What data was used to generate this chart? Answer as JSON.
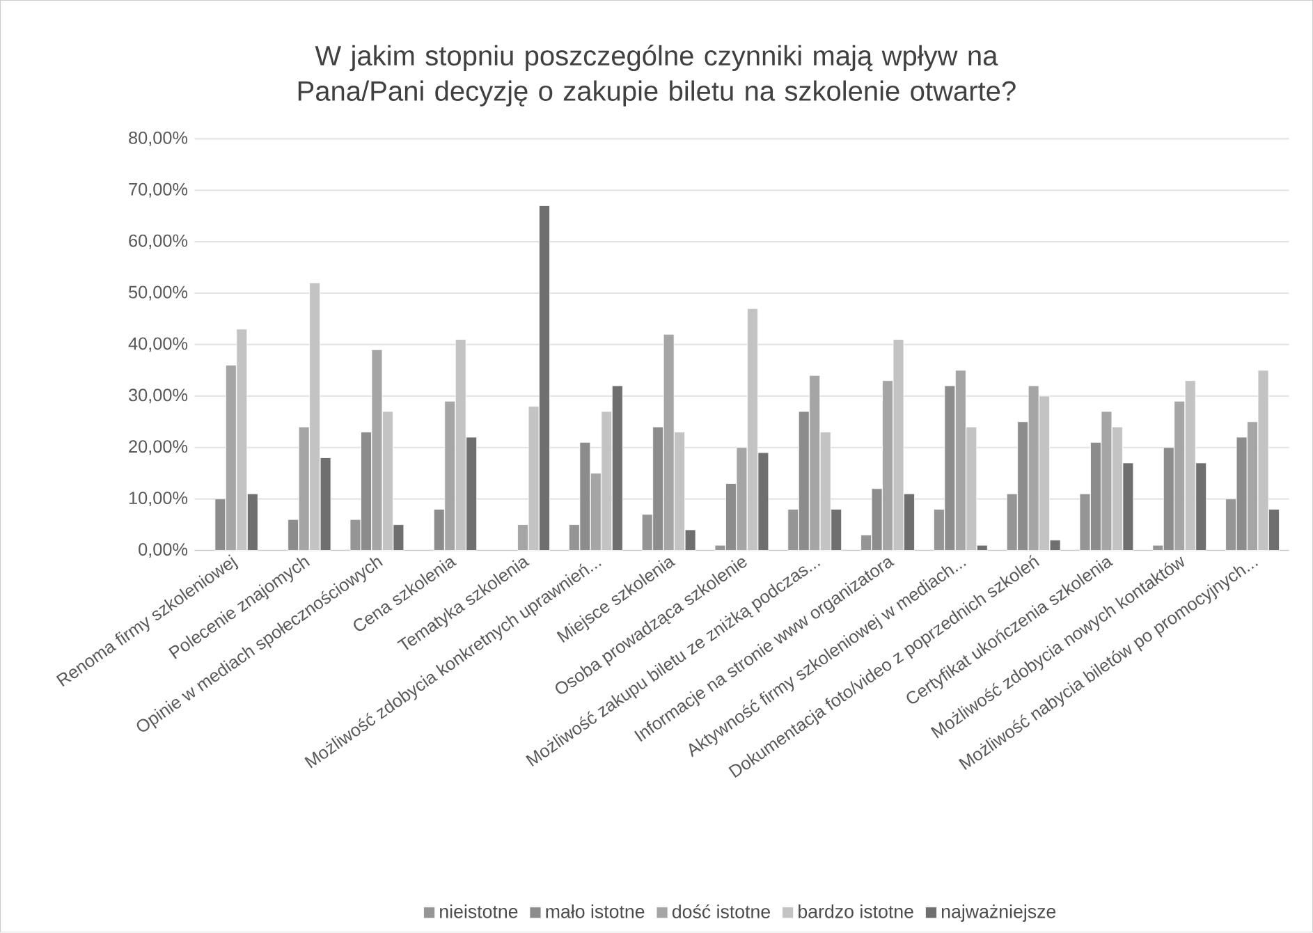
{
  "chart_data": {
    "type": "bar",
    "title": "W jakim stopniu poszczególne czynniki mają wpływ na Pana/Pani decyzję o zakupie biletu na szkolenie otwarte?",
    "categories": [
      "Renoma firmy szkoleniowej",
      "Polecenie znajomych",
      "Opinie w mediach społecznościowych",
      "Cena szkolenia",
      "Tematyka szkolenia",
      "Możliwość zdobycia konkretnych uprawnień...",
      "Miejsce szkolenia",
      "Osoba prowadząca szkolenie",
      "Możliwość zakupu biletu ze zniżką podczas...",
      "Informacje na stronie www organizatora",
      "Aktywność firmy szkoleniowej w mediach...",
      "Dokumentacja foto/video z poprzednich szkoleń",
      "Certyfikat ukończenia szkolenia",
      "Możliwość zdobycia nowych kontaktów",
      "Możliwość nabycia biletów po promocyjnych..."
    ],
    "series": [
      {
        "name": "nieistotne",
        "color": "#959595",
        "values": [
          null,
          null,
          6,
          null,
          null,
          5,
          7,
          1,
          8,
          3,
          8,
          11,
          11,
          1,
          10
        ]
      },
      {
        "name": "mało istotne",
        "color": "#8c8c8c",
        "values": [
          10,
          6,
          23,
          8,
          null,
          21,
          24,
          13,
          27,
          12,
          32,
          25,
          21,
          20,
          22
        ]
      },
      {
        "name": "dość istotne",
        "color": "#a5a5a5",
        "values": [
          36,
          24,
          39,
          29,
          5,
          15,
          42,
          20,
          34,
          33,
          35,
          32,
          27,
          29,
          25
        ]
      },
      {
        "name": "bardzo istotne",
        "color": "#c3c3c3",
        "values": [
          43,
          52,
          27,
          41,
          28,
          27,
          23,
          47,
          23,
          41,
          24,
          30,
          24,
          33,
          35
        ]
      },
      {
        "name": "najważniejsze",
        "color": "#6f6f6f",
        "values": [
          11,
          18,
          5,
          22,
          67,
          32,
          4,
          19,
          8,
          11,
          1,
          2,
          17,
          17,
          8
        ]
      }
    ],
    "ylim": [
      0,
      80
    ],
    "yticks": [
      {
        "value": 0,
        "label": "0,00%"
      },
      {
        "value": 10,
        "label": "10,00%"
      },
      {
        "value": 20,
        "label": "20,00%"
      },
      {
        "value": 30,
        "label": "30,00%"
      },
      {
        "value": 40,
        "label": "40,00%"
      },
      {
        "value": 50,
        "label": "50,00%"
      },
      {
        "value": 60,
        "label": "60,00%"
      },
      {
        "value": 70,
        "label": "70,00%"
      },
      {
        "value": 80,
        "label": "80,00%"
      }
    ],
    "grid": "y",
    "legend": "bottom"
  }
}
